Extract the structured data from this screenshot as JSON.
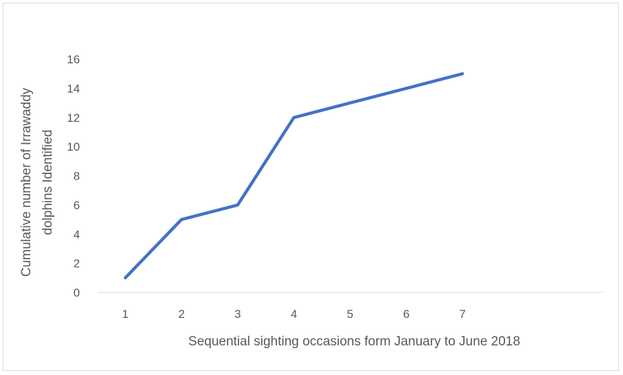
{
  "chart_data": {
    "type": "line",
    "title": "",
    "xlabel": "Sequential sighting occasions form January to June 2018",
    "ylabel_lines": [
      "Cumulative number of Irrawaddy",
      "dolphins Identified"
    ],
    "x": [
      1,
      2,
      3,
      4,
      5,
      6,
      7
    ],
    "x_categories_total": 9,
    "series": [
      {
        "values": [
          1,
          5,
          6,
          12,
          13,
          14,
          15
        ]
      }
    ],
    "ylim": [
      0,
      16
    ],
    "yticks": [
      0,
      2,
      4,
      6,
      8,
      10,
      12,
      14,
      16
    ],
    "grid": false,
    "legend": "none",
    "line_color": "#4472c4",
    "axis_color": "#d9d9d9",
    "text_color": "#595959"
  }
}
